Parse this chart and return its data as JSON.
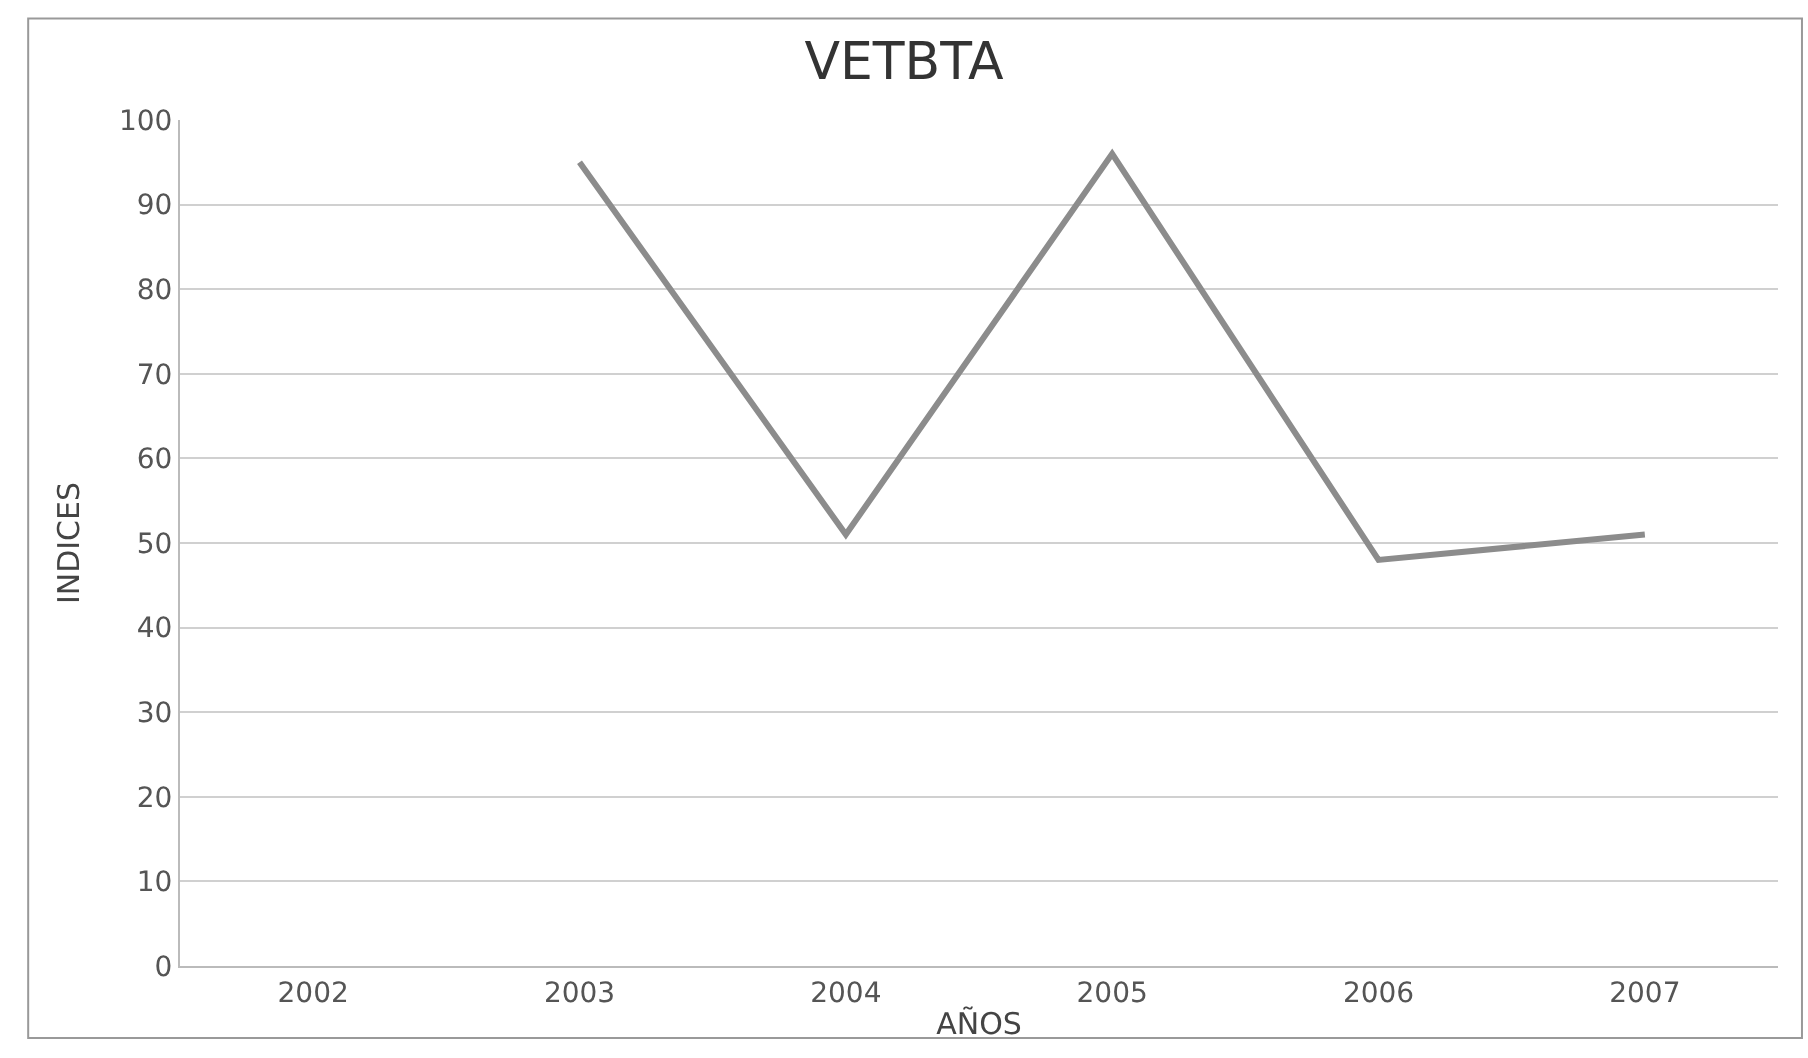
{
  "chart_data": {
    "type": "line",
    "title": "VETBTA",
    "xlabel": "AÑOS",
    "ylabel": "INDICES",
    "categories": [
      "2002",
      "2003",
      "2004",
      "2005",
      "2006",
      "2007"
    ],
    "series": [
      {
        "color": "#8c8c8c",
        "values": [
          null,
          95,
          51,
          96,
          48,
          51
        ]
      }
    ],
    "ylim": [
      0,
      100
    ],
    "yticks": [
      0,
      10,
      20,
      30,
      40,
      50,
      60,
      70,
      80,
      90,
      100
    ],
    "grid": "y",
    "legend": false,
    "marker": "none",
    "line_style": "solid"
  }
}
